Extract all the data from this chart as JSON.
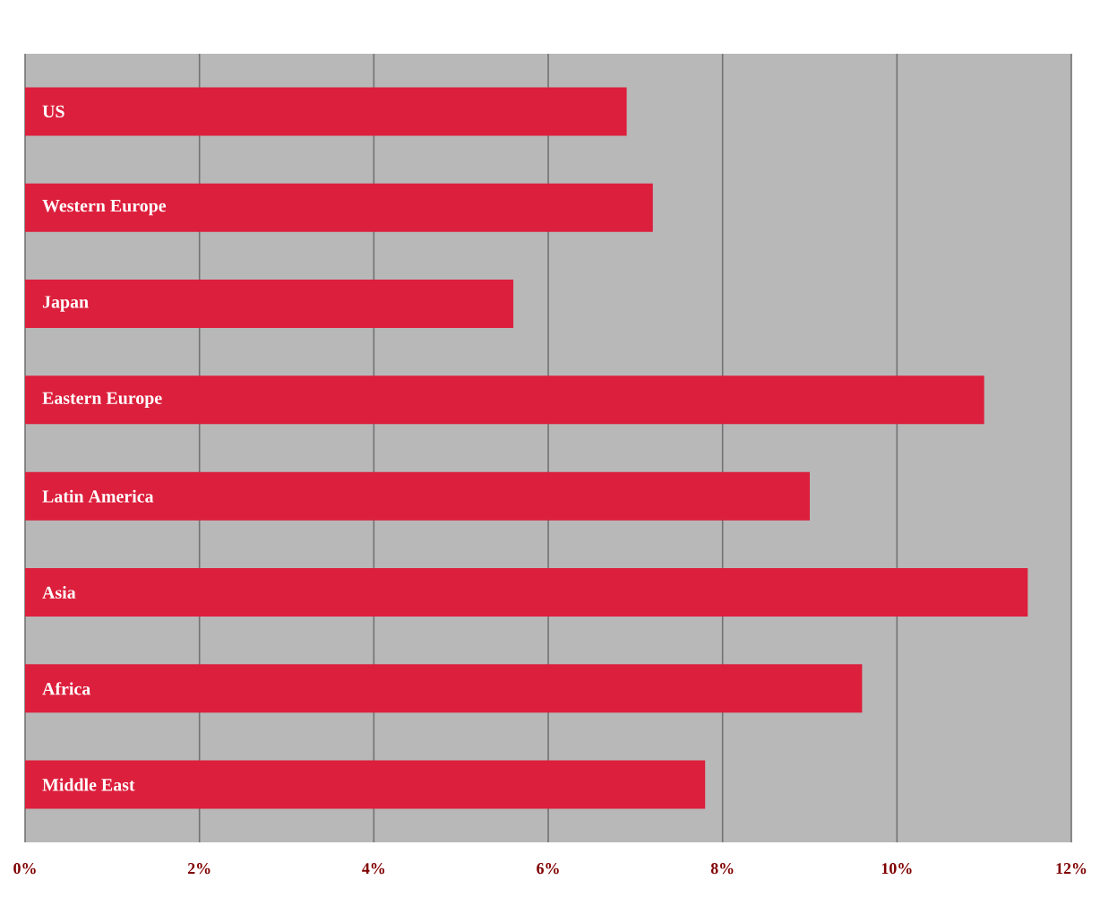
{
  "chart_data": {
    "type": "bar",
    "orientation": "horizontal",
    "categories": [
      "US",
      "Western Europe",
      "Japan",
      "Eastern Europe",
      "Latin America",
      "Asia",
      "Africa",
      "Middle East"
    ],
    "values": [
      6.9,
      7.2,
      5.6,
      11.0,
      9.0,
      11.5,
      9.6,
      7.8
    ],
    "color": "#dc1f3c",
    "xlim": [
      0,
      12
    ],
    "xticks": [
      {
        "value": 0,
        "label": "0%"
      },
      {
        "value": 2,
        "label": "2%"
      },
      {
        "value": 4,
        "label": "4%"
      },
      {
        "value": 6,
        "label": "6%"
      },
      {
        "value": 8,
        "label": "8%"
      },
      {
        "value": 10,
        "label": "10%"
      },
      {
        "value": 12,
        "label": "12%"
      }
    ],
    "grid": "x"
  }
}
